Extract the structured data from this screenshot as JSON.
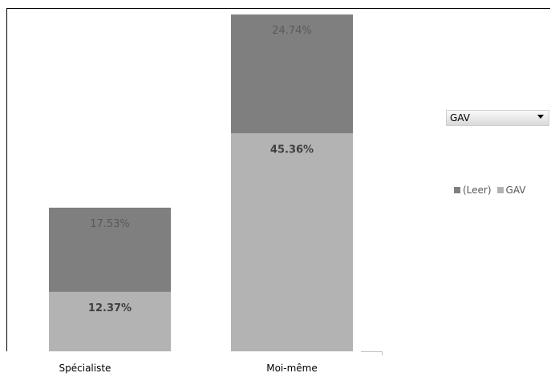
{
  "chart_data": {
    "type": "bar",
    "stacked": true,
    "categories": [
      "Spécialiste",
      "Moi-même"
    ],
    "series": [
      {
        "name": "GAV",
        "values": [
          12.37,
          45.36
        ],
        "labels": [
          "12.37%",
          "45.36%"
        ],
        "color": "#b3b3b3"
      },
      {
        "name": "(Leer)",
        "values": [
          17.53,
          24.74
        ],
        "labels": [
          "17.53%",
          "24.74%"
        ],
        "color": "#7f7f7f"
      }
    ],
    "value_unit": "%",
    "grid": false,
    "legend_position": "right"
  },
  "filter": {
    "value": "GAV"
  },
  "legend": {
    "items": [
      {
        "label": "(Leer)",
        "color": "#7f7f7f"
      },
      {
        "label": "GAV",
        "color": "#b3b3b3"
      }
    ]
  }
}
